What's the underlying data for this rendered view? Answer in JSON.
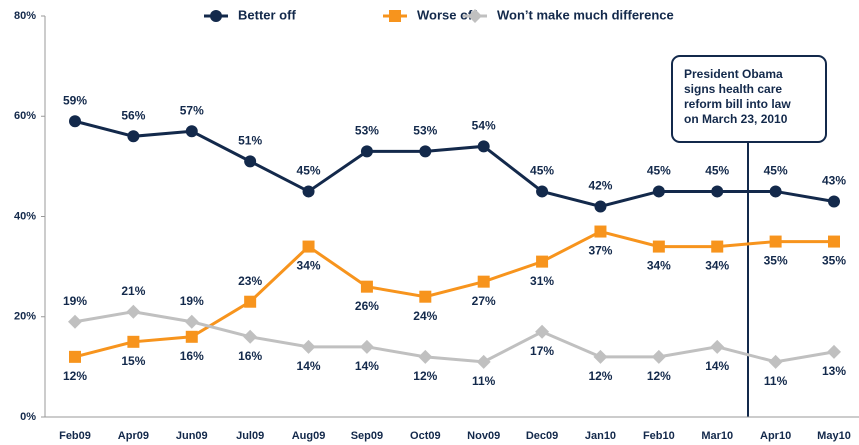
{
  "chart_data": {
    "type": "line",
    "categories": [
      "Feb09",
      "Apr09",
      "Jun09",
      "Jul09",
      "Aug09",
      "Sep09",
      "Oct09",
      "Nov09",
      "Dec09",
      "Jan10",
      "Feb10",
      "Mar10",
      "Apr10",
      "May10"
    ],
    "series": [
      {
        "name": "Better off",
        "color": "#13294b",
        "marker": "circle",
        "values": [
          59,
          56,
          57,
          51,
          45,
          53,
          53,
          54,
          45,
          42,
          45,
          45,
          45,
          43
        ],
        "value_labels": [
          "59%",
          "56%",
          "57%",
          "51%",
          "45%",
          "53%",
          "53%",
          "54%",
          "45%",
          "42%",
          "45%",
          "45%",
          "45%",
          "43%"
        ]
      },
      {
        "name": "Worse off",
        "color": "#f7941d",
        "marker": "square",
        "values": [
          12,
          15,
          16,
          23,
          34,
          26,
          24,
          27,
          31,
          37,
          34,
          34,
          35,
          35
        ],
        "value_labels": [
          "12%",
          "15%",
          "16%",
          "23%",
          "34%",
          "26%",
          "24%",
          "27%",
          "31%",
          "37%",
          "34%",
          "34%",
          "35%",
          "35%"
        ]
      },
      {
        "name": "Won’t make much difference",
        "color": "#c0c0c0",
        "marker": "diamond",
        "values": [
          19,
          21,
          19,
          16,
          14,
          14,
          12,
          11,
          17,
          12,
          12,
          14,
          11,
          13
        ],
        "value_labels": [
          "19%",
          "21%",
          "19%",
          "16%",
          "14%",
          "14%",
          "12%",
          "11%",
          "17%",
          "12%",
          "12%",
          "14%",
          "11%",
          "13%"
        ]
      }
    ],
    "ylim": [
      0,
      80
    ],
    "yticks": [
      {
        "value": 0,
        "label": "0%"
      },
      {
        "value": 20,
        "label": "20%"
      },
      {
        "value": 40,
        "label": "40%"
      },
      {
        "value": 60,
        "label": "60%"
      },
      {
        "value": 80,
        "label": "80%"
      }
    ],
    "grid": false,
    "legend": "top",
    "annotation": {
      "lines": [
        "President Obama",
        "signs health care",
        "reform bill into law",
        "on March 23, 2010"
      ]
    }
  }
}
